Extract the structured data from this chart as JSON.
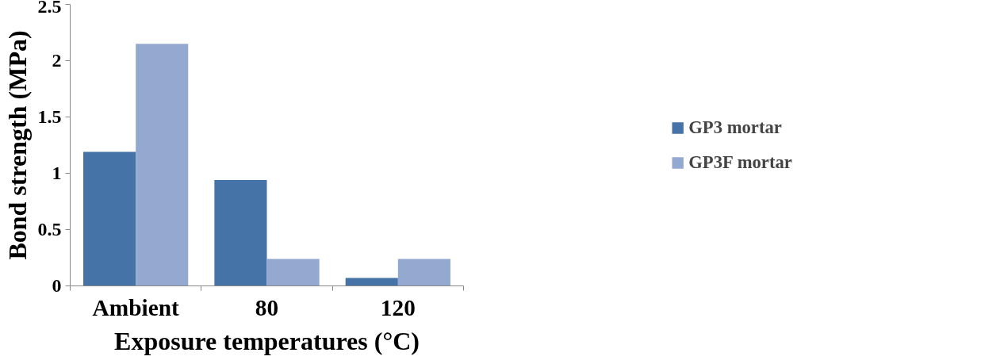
{
  "chart_data": {
    "type": "bar",
    "xlabel": "Exposure temperatures (°C)",
    "ylabel": "Bond strength (MPa)",
    "categories": [
      "Ambient",
      "80",
      "120"
    ],
    "series": [
      {
        "name": "GP3 mortar",
        "color": "#4572a7",
        "values": [
          1.19,
          0.94,
          0.07
        ]
      },
      {
        "name": "GP3F mortar",
        "color": "#94a9d0",
        "values": [
          2.15,
          0.24,
          0.24
        ]
      }
    ],
    "ylim": [
      0,
      2.5
    ],
    "yticks": [
      0,
      0.5,
      1,
      1.5,
      2,
      2.5
    ],
    "grid": false,
    "legend": "right"
  }
}
